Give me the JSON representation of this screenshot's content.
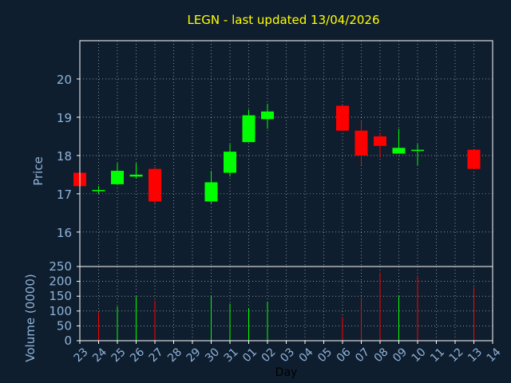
{
  "title": "LEGN - last updated 13/04/2026",
  "colors": {
    "background": "#0f1e2e",
    "axis": "#ffffff",
    "grid": "#ffffff",
    "title": "#ffff00",
    "labels": "#8fb3d9",
    "up": "#00ff00",
    "down": "#ff0000"
  },
  "chart_data": [
    {
      "type": "candlestick",
      "ylabel": "Price",
      "ylim": [
        15.1,
        21.0
      ],
      "yticks": [
        16,
        17,
        18,
        19,
        20
      ],
      "grid": true,
      "x": [
        "23",
        "24",
        "25",
        "26",
        "27",
        "28",
        "29",
        "30",
        "31",
        "01",
        "02",
        "03",
        "04",
        "05",
        "06",
        "07",
        "08",
        "09",
        "10",
        "11",
        "12",
        "13",
        "14"
      ],
      "candles": [
        {
          "x": "23",
          "open": 17.55,
          "high": 17.55,
          "low": 17.2,
          "close": 17.2
        },
        {
          "x": "24",
          "open": 17.1,
          "high": 17.2,
          "low": 17.0,
          "close": 17.1
        },
        {
          "x": "25",
          "open": 17.25,
          "high": 17.8,
          "low": 17.25,
          "close": 17.6
        },
        {
          "x": "26",
          "open": 17.45,
          "high": 17.8,
          "low": 17.4,
          "close": 17.5
        },
        {
          "x": "27",
          "open": 17.65,
          "high": 17.7,
          "low": 16.75,
          "close": 16.8
        },
        {
          "x": "30",
          "open": 16.8,
          "high": 17.6,
          "low": 16.75,
          "close": 17.3
        },
        {
          "x": "31",
          "open": 17.55,
          "high": 18.3,
          "low": 17.45,
          "close": 18.1
        },
        {
          "x": "01",
          "open": 18.35,
          "high": 19.2,
          "low": 18.35,
          "close": 19.05
        },
        {
          "x": "02",
          "open": 18.95,
          "high": 19.35,
          "low": 18.7,
          "close": 19.15
        },
        {
          "x": "06",
          "open": 19.3,
          "high": 19.3,
          "low": 18.65,
          "close": 18.65
        },
        {
          "x": "07",
          "open": 18.65,
          "high": 18.9,
          "low": 17.75,
          "close": 18.0
        },
        {
          "x": "08",
          "open": 18.5,
          "high": 18.6,
          "low": 17.95,
          "close": 18.25
        },
        {
          "x": "09",
          "open": 18.05,
          "high": 18.7,
          "low": 18.05,
          "close": 18.2
        },
        {
          "x": "10",
          "open": 18.15,
          "high": 18.3,
          "low": 17.75,
          "close": 18.15
        },
        {
          "x": "13",
          "open": 18.15,
          "high": 18.15,
          "low": 17.65,
          "close": 17.65
        }
      ]
    },
    {
      "type": "bar",
      "xlabel": "Day",
      "ylabel": "Volume (0000)",
      "ylim": [
        0,
        250
      ],
      "yticks": [
        0,
        50,
        100,
        150,
        200,
        250
      ],
      "grid": true,
      "x": [
        "23",
        "24",
        "25",
        "26",
        "27",
        "28",
        "29",
        "30",
        "31",
        "01",
        "02",
        "03",
        "04",
        "05",
        "06",
        "07",
        "08",
        "09",
        "10",
        "11",
        "12",
        "13",
        "14"
      ],
      "bars": [
        {
          "x": "24",
          "value": 95,
          "direction": "down"
        },
        {
          "x": "25",
          "value": 115,
          "direction": "up"
        },
        {
          "x": "26",
          "value": 150,
          "direction": "up"
        },
        {
          "x": "27",
          "value": 135,
          "direction": "down"
        },
        {
          "x": "30",
          "value": 150,
          "direction": "up"
        },
        {
          "x": "31",
          "value": 125,
          "direction": "up"
        },
        {
          "x": "01",
          "value": 110,
          "direction": "up"
        },
        {
          "x": "02",
          "value": 130,
          "direction": "up"
        },
        {
          "x": "06",
          "value": 80,
          "direction": "down"
        },
        {
          "x": "07",
          "value": 145,
          "direction": "down"
        },
        {
          "x": "08",
          "value": 230,
          "direction": "down"
        },
        {
          "x": "09",
          "value": 150,
          "direction": "up"
        },
        {
          "x": "10",
          "value": 220,
          "direction": "down"
        },
        {
          "x": "13",
          "value": 180,
          "direction": "down"
        }
      ]
    }
  ]
}
